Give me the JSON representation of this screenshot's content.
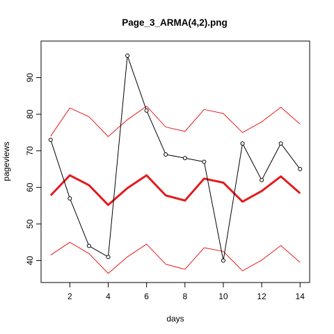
{
  "chart_data": {
    "type": "line",
    "title": "Page_3_ARMA(4,2).png",
    "xlabel": "days",
    "ylabel": "pageviews",
    "xlim": [
      0.5,
      14.5
    ],
    "ylim": [
      34,
      100
    ],
    "x_ticks": [
      2,
      4,
      6,
      8,
      10,
      12,
      14
    ],
    "y_ticks": [
      40,
      50,
      60,
      70,
      80,
      90
    ],
    "grid": false,
    "x": [
      1,
      2,
      3,
      4,
      5,
      6,
      7,
      8,
      9,
      10,
      11,
      12,
      13,
      14
    ],
    "series": [
      {
        "role": "observed",
        "color": "#000000",
        "markers": "open-circle",
        "values": [
          73,
          57,
          44,
          41,
          96,
          81,
          69,
          68,
          67,
          40,
          72,
          62,
          72,
          65
        ]
      },
      {
        "role": "fitted",
        "color": "#e31a1c",
        "line": "thick",
        "values": [
          57.8,
          63.3,
          60.6,
          55.2,
          59.8,
          63.3,
          57.8,
          56.4,
          62.4,
          61.3,
          56.1,
          59.0,
          63.0,
          58.4
        ]
      },
      {
        "role": "upper-bound",
        "color": "#e31a1c",
        "line": "thin",
        "values": [
          74.0,
          81.7,
          79.3,
          73.9,
          78.5,
          82.2,
          76.5,
          75.3,
          81.3,
          80.2,
          75.0,
          77.9,
          81.9,
          77.3
        ]
      },
      {
        "role": "lower-bound",
        "color": "#e31a1c",
        "line": "thin",
        "values": [
          41.5,
          45.0,
          41.9,
          36.5,
          41.0,
          44.5,
          39.0,
          37.6,
          43.5,
          42.5,
          37.2,
          40.1,
          44.1,
          39.5
        ]
      }
    ]
  }
}
